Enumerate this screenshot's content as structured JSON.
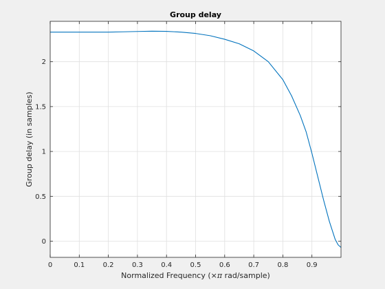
{
  "chart_data": {
    "type": "line",
    "title": "Group delay",
    "xlabel_main": "Normalized Frequency  (×",
    "xlabel_pi": "π",
    "xlabel_tail": " rad/sample)",
    "ylabel": "Group delay (in samples)",
    "xlim": [
      0,
      1
    ],
    "ylim": [
      -0.18,
      2.45
    ],
    "grid": true,
    "x_ticks": [
      0,
      0.1,
      0.2,
      0.3,
      0.4,
      0.5,
      0.6,
      0.7,
      0.8,
      0.9
    ],
    "x_tick_labels": [
      "0",
      "0.1",
      "0.2",
      "0.3",
      "0.4",
      "0.5",
      "0.6",
      "0.7",
      "0.8",
      "0.9"
    ],
    "y_ticks": [
      0,
      0.5,
      1,
      1.5,
      2
    ],
    "y_tick_labels": [
      "0",
      "0.5",
      "1",
      "1.5",
      "2"
    ],
    "line_color": "#0072bd",
    "series": [
      {
        "x": [
          0,
          0.05,
          0.1,
          0.15,
          0.2,
          0.25,
          0.3,
          0.35,
          0.4,
          0.45,
          0.5,
          0.55,
          0.6,
          0.65,
          0.7,
          0.75,
          0.8,
          0.83,
          0.86,
          0.88,
          0.9,
          0.92,
          0.94,
          0.96,
          0.98,
          0.99,
          1.0
        ],
        "y": [
          2.33,
          2.33,
          2.33,
          2.33,
          2.33,
          2.333,
          2.337,
          2.34,
          2.338,
          2.33,
          2.315,
          2.29,
          2.25,
          2.2,
          2.12,
          2.0,
          1.8,
          1.62,
          1.4,
          1.22,
          0.98,
          0.72,
          0.46,
          0.22,
          0.02,
          -0.04,
          -0.07
        ]
      }
    ]
  }
}
